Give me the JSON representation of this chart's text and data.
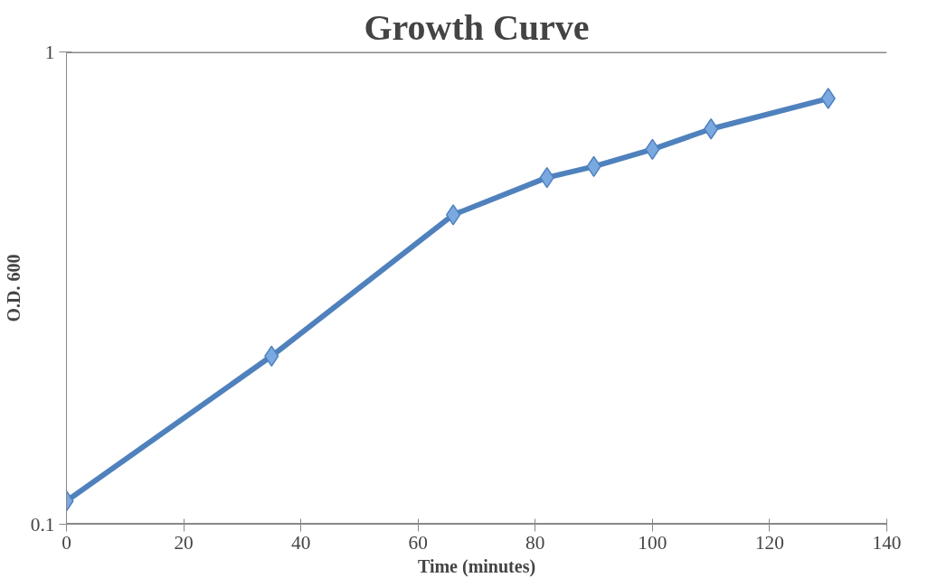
{
  "chart_data": {
    "type": "line",
    "title": "Growth Curve",
    "xlabel": "Time (minutes)",
    "ylabel": "O.D. 600",
    "x": [
      0,
      35,
      66,
      82,
      90,
      100,
      110,
      130
    ],
    "series": [
      {
        "color": "#4f81bd",
        "values": [
          0.112,
          0.227,
          0.452,
          0.542,
          0.572,
          0.622,
          0.687,
          0.797
        ]
      }
    ],
    "xlim": [
      0,
      140
    ],
    "xticks": [
      0,
      20,
      40,
      60,
      80,
      100,
      120,
      140
    ],
    "ylim": [
      0.1,
      1
    ],
    "yticks": [
      0.1,
      1
    ],
    "log": "y",
    "grid": "y",
    "marker": "diamond",
    "line_style": "solid"
  }
}
